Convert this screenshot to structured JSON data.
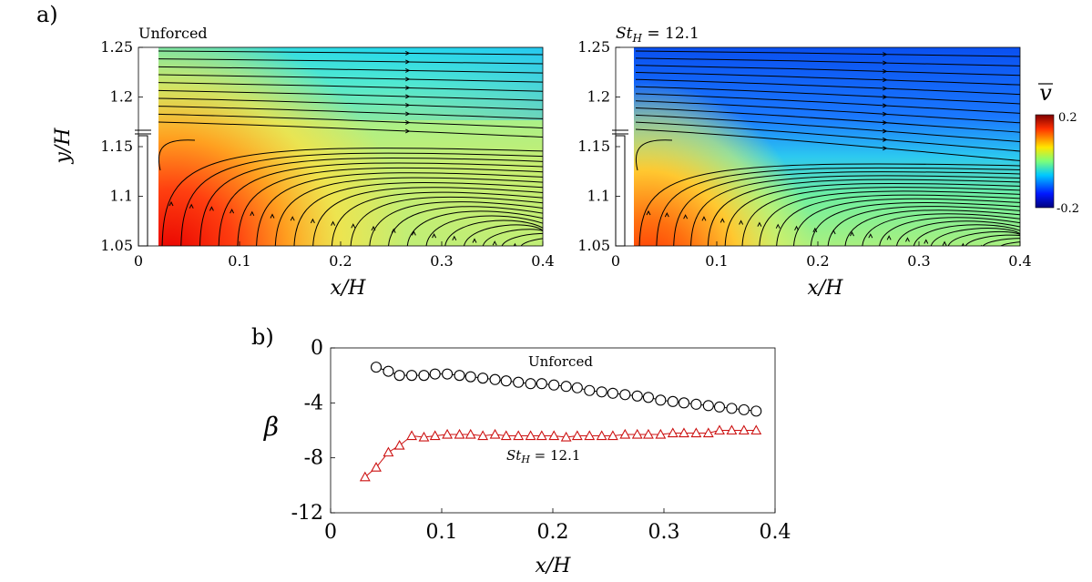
{
  "panel_a_label": "a)",
  "panel_b_label": "b)",
  "colorbar": {
    "symbol": "v",
    "max_label": "0.2",
    "min_label": "-0.2"
  },
  "chart_data": [
    {
      "type": "heatmap",
      "panel": "a-left",
      "title": "Unforced",
      "xlabel": "x/H",
      "ylabel": "y/H",
      "xlim": [
        0,
        0.4
      ],
      "ylim": [
        1.05,
        1.25
      ],
      "xticks": [
        "0",
        "0.1",
        "0.2",
        "0.3",
        "0.4"
      ],
      "yticks": [
        "1.05",
        "1.1",
        "1.15",
        "1.2",
        "1.25"
      ],
      "field": "v-bar",
      "color_range": [
        -0.2,
        0.2
      ]
    },
    {
      "type": "heatmap",
      "panel": "a-right",
      "title_parts": {
        "base": "St",
        "sub": "H",
        "rest": " = 12.1"
      },
      "xlabel": "x/H",
      "ylabel": "",
      "xlim": [
        0,
        0.4
      ],
      "ylim": [
        1.05,
        1.25
      ],
      "xticks": [
        "0",
        "0.1",
        "0.2",
        "0.3",
        "0.4"
      ],
      "yticks": [
        "1.05",
        "1.1",
        "1.15",
        "1.2",
        "1.25"
      ],
      "field": "v-bar",
      "color_range": [
        -0.2,
        0.2
      ]
    },
    {
      "type": "line",
      "panel": "b",
      "xlabel": "x/H",
      "ylabel": "β",
      "xlim": [
        0,
        0.4
      ],
      "ylim": [
        -12,
        0
      ],
      "xticks": [
        "0",
        "0.1",
        "0.2",
        "0.3",
        "0.4"
      ],
      "yticks": [
        "0",
        "-4",
        "-8",
        "-12"
      ],
      "grid": false,
      "series": [
        {
          "name": "Unforced",
          "marker": "circle",
          "color": "#000000",
          "x": [
            0.041,
            0.052,
            0.062,
            0.073,
            0.084,
            0.094,
            0.105,
            0.116,
            0.126,
            0.137,
            0.148,
            0.158,
            0.169,
            0.18,
            0.19,
            0.201,
            0.212,
            0.222,
            0.233,
            0.244,
            0.254,
            0.265,
            0.276,
            0.286,
            0.297,
            0.308,
            0.318,
            0.329,
            0.34,
            0.35,
            0.361,
            0.372,
            0.383
          ],
          "y": [
            -1.4,
            -1.7,
            -2.0,
            -2.0,
            -2.0,
            -1.9,
            -1.9,
            -2.0,
            -2.1,
            -2.2,
            -2.3,
            -2.4,
            -2.5,
            -2.6,
            -2.6,
            -2.7,
            -2.8,
            -2.9,
            -3.1,
            -3.2,
            -3.3,
            -3.4,
            -3.5,
            -3.6,
            -3.8,
            -3.9,
            -4.0,
            -4.1,
            -4.2,
            -4.3,
            -4.4,
            -4.5,
            -4.6
          ]
        },
        {
          "name_parts": {
            "base": "St",
            "sub": "H",
            "rest": " = 12.1"
          },
          "marker": "triangle",
          "color": "#cc1111",
          "x": [
            0.031,
            0.041,
            0.052,
            0.062,
            0.073,
            0.084,
            0.094,
            0.105,
            0.116,
            0.126,
            0.137,
            0.148,
            0.158,
            0.169,
            0.18,
            0.19,
            0.201,
            0.212,
            0.222,
            0.233,
            0.244,
            0.254,
            0.265,
            0.276,
            0.286,
            0.297,
            0.308,
            0.318,
            0.329,
            0.34,
            0.35,
            0.361,
            0.372,
            0.383
          ],
          "y": [
            -9.4,
            -8.7,
            -7.6,
            -7.1,
            -6.4,
            -6.5,
            -6.4,
            -6.3,
            -6.3,
            -6.3,
            -6.4,
            -6.3,
            -6.4,
            -6.4,
            -6.4,
            -6.4,
            -6.4,
            -6.5,
            -6.4,
            -6.4,
            -6.4,
            -6.4,
            -6.3,
            -6.3,
            -6.3,
            -6.3,
            -6.2,
            -6.2,
            -6.2,
            -6.2,
            -6.0,
            -6.0,
            -6.0,
            -6.0
          ]
        }
      ]
    }
  ]
}
